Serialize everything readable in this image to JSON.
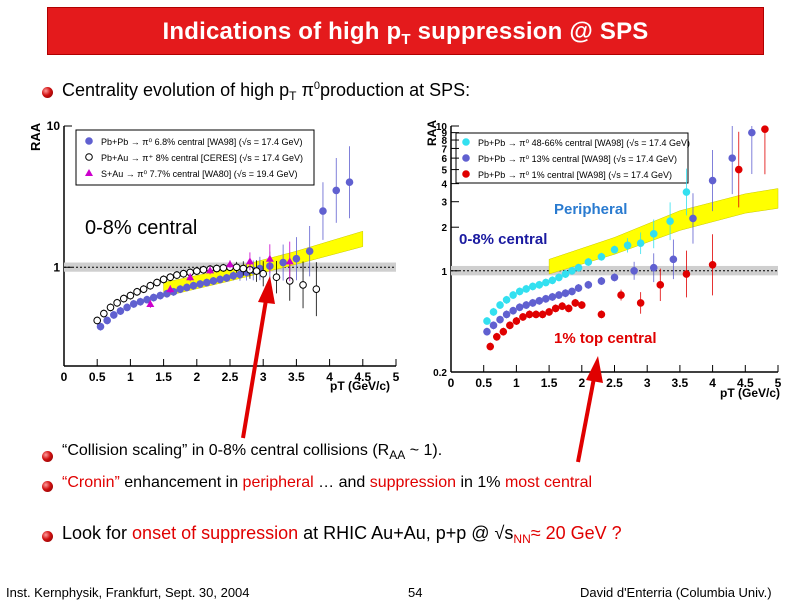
{
  "slide": {
    "title_main": "Indications of high p",
    "title_sub": "T",
    "title_rest": " suppression @ SPS",
    "bullet1_a": "Centrality evolution of high p",
    "bullet1_sub": "T",
    "bullet1_b": " π",
    "bullet1_sup": "0",
    "bullet1_c": "production at SPS:",
    "bullet2_a": "“Collision scaling” in 0-8% central collisions (R",
    "bullet2_sub": "AA",
    "bullet2_b": " ~ 1).",
    "bullet3_a": "“Cronin”",
    "bullet3_b": " enhancement in ",
    "bullet3_c": "peripheral",
    "bullet3_d": " … and ",
    "bullet3_e": "suppression",
    "bullet3_f": " in 1% ",
    "bullet3_g": "most central",
    "bullet4_a": "Look for ",
    "bullet4_b": "onset of suppression",
    "bullet4_c": " at RHIC Au+Au, p+p @ √s",
    "bullet4_sub": "NN",
    "bullet4_d": "≈  20 GeV ?",
    "footer_left": "Inst. Kernphysik, Frankfurt, Sept. 30, 2004",
    "footer_page": "54",
    "footer_right": "David d'Enterria (Columbia Univ.)"
  },
  "chart_data": [
    {
      "type": "scatter",
      "ylabel": "RAA",
      "xlabel": "pT (GeV/c)",
      "xlim": [
        0,
        5
      ],
      "ylim_log": [
        0.2,
        10
      ],
      "xticks": [
        "0",
        "0.5",
        "1",
        "1.5",
        "2",
        "2.5",
        "3",
        "3.5",
        "4",
        "4.5",
        "5"
      ],
      "yticks": [
        "1",
        "10"
      ],
      "annotation": "0-8% central",
      "legend": [
        "Pb+Pb → π⁰ 6.8% central [WA98] (√s = 17.4 GeV)",
        "Pb+Au → π⁺ 8% central [CERES] (√s = 17.4 GeV)",
        "S+Au → π⁰ 7.7% central [WA80] (√s = 19.4 GeV)"
      ],
      "series": [
        {
          "name": "Pb+Pb → π⁰ 6.8% central [WA98]",
          "color": "#6060d0",
          "x": [
            0.55,
            0.65,
            0.75,
            0.85,
            0.95,
            1.05,
            1.15,
            1.25,
            1.35,
            1.45,
            1.55,
            1.65,
            1.75,
            1.85,
            1.95,
            2.05,
            2.15,
            2.25,
            2.35,
            2.45,
            2.55,
            2.65,
            2.75,
            2.85,
            2.95,
            3.1,
            3.3,
            3.5,
            3.7,
            3.9,
            4.1,
            4.3
          ],
          "y": [
            0.38,
            0.42,
            0.46,
            0.49,
            0.52,
            0.55,
            0.57,
            0.59,
            0.61,
            0.63,
            0.65,
            0.67,
            0.7,
            0.72,
            0.74,
            0.76,
            0.78,
            0.8,
            0.82,
            0.84,
            0.87,
            0.89,
            0.92,
            0.95,
            0.98,
            1.02,
            1.08,
            1.15,
            1.3,
            2.5,
            3.5,
            4.0
          ]
        },
        {
          "name": "Pb+Au → π⁺ 8% central [CERES]",
          "color": "#000000",
          "x": [
            0.5,
            0.6,
            0.7,
            0.8,
            0.9,
            1.0,
            1.1,
            1.2,
            1.3,
            1.4,
            1.5,
            1.6,
            1.7,
            1.8,
            1.9,
            2.0,
            2.1,
            2.2,
            2.3,
            2.4,
            2.5,
            2.6,
            2.7,
            2.8,
            2.9,
            3.0,
            3.2,
            3.4,
            3.6,
            3.8
          ],
          "y": [
            0.42,
            0.47,
            0.52,
            0.56,
            0.6,
            0.63,
            0.67,
            0.7,
            0.74,
            0.78,
            0.82,
            0.85,
            0.88,
            0.9,
            0.92,
            0.94,
            0.96,
            0.97,
            0.98,
            0.99,
            1.0,
            1.0,
            0.98,
            0.96,
            0.94,
            0.9,
            0.85,
            0.8,
            0.75,
            0.7
          ]
        },
        {
          "name": "S+Au → π⁰ 7.7% central [WA80]",
          "color": "#cc00cc",
          "x": [
            1.3,
            1.6,
            1.9,
            2.2,
            2.5,
            2.8,
            3.1,
            3.4
          ],
          "y": [
            0.55,
            0.7,
            0.85,
            0.95,
            1.05,
            1.1,
            1.15,
            1.1
          ]
        }
      ]
    },
    {
      "type": "scatter",
      "ylabel": "RAA",
      "xlabel": "pT (GeV/c)",
      "xlim": [
        0,
        5
      ],
      "ylim_log": [
        0.2,
        10
      ],
      "xticks": [
        "0",
        "0.5",
        "1",
        "1.5",
        "2",
        "2.5",
        "3",
        "3.5",
        "4",
        "4.5",
        "5"
      ],
      "yticks": [
        "0.2",
        "1",
        "2",
        "3",
        "4",
        "5",
        "6",
        "7",
        "8",
        "9",
        "10"
      ],
      "annotations": [
        "Peripheral",
        "0-8% central",
        "1% top central"
      ],
      "legend": [
        "Pb+Pb → π⁰ 48-66% central [WA98] (√s = 17.4 GeV)",
        "Pb+Pb → π⁰ 13% central [WA98] (√s = 17.4 GeV)",
        "Pb+Pb → π⁰ 1% central [WA98] (√s = 17.4 GeV)"
      ],
      "series": [
        {
          "name": "Pb+Pb → π⁰ 48-66% central [WA98]",
          "color": "#33e0f0",
          "x": [
            0.55,
            0.65,
            0.75,
            0.85,
            0.95,
            1.05,
            1.15,
            1.25,
            1.35,
            1.45,
            1.55,
            1.65,
            1.75,
            1.85,
            1.95,
            2.1,
            2.3,
            2.5,
            2.7,
            2.9,
            3.1,
            3.35,
            3.6
          ],
          "y": [
            0.45,
            0.52,
            0.58,
            0.63,
            0.68,
            0.72,
            0.75,
            0.78,
            0.8,
            0.83,
            0.86,
            0.9,
            0.95,
            1.0,
            1.05,
            1.15,
            1.25,
            1.4,
            1.5,
            1.55,
            1.8,
            2.2,
            3.5
          ]
        },
        {
          "name": "Pb+Pb → π⁰ 13% central [WA98]",
          "color": "#6060d0",
          "x": [
            0.55,
            0.65,
            0.75,
            0.85,
            0.95,
            1.05,
            1.15,
            1.25,
            1.35,
            1.45,
            1.55,
            1.65,
            1.75,
            1.85,
            1.95,
            2.1,
            2.3,
            2.5,
            2.8,
            3.1,
            3.4,
            3.7,
            4.0,
            4.3,
            4.6
          ],
          "y": [
            0.38,
            0.42,
            0.46,
            0.5,
            0.53,
            0.56,
            0.58,
            0.6,
            0.62,
            0.64,
            0.66,
            0.68,
            0.7,
            0.72,
            0.76,
            0.8,
            0.85,
            0.9,
            1.0,
            1.05,
            1.2,
            2.3,
            4.2,
            6.0,
            9.0
          ]
        },
        {
          "name": "Pb+Pb → π⁰ 1% central [WA98]",
          "color": "#e00000",
          "x": [
            0.6,
            0.7,
            0.8,
            0.9,
            1.0,
            1.1,
            1.2,
            1.3,
            1.4,
            1.5,
            1.6,
            1.7,
            1.8,
            1.9,
            2.0,
            2.3,
            2.6,
            2.9,
            3.2,
            3.6,
            4.0,
            4.4,
            4.8
          ],
          "y": [
            0.3,
            0.35,
            0.38,
            0.42,
            0.45,
            0.48,
            0.5,
            0.5,
            0.5,
            0.52,
            0.55,
            0.57,
            0.55,
            0.6,
            0.58,
            0.5,
            0.68,
            0.6,
            0.8,
            0.95,
            1.1,
            5.0,
            9.5
          ]
        }
      ]
    }
  ]
}
